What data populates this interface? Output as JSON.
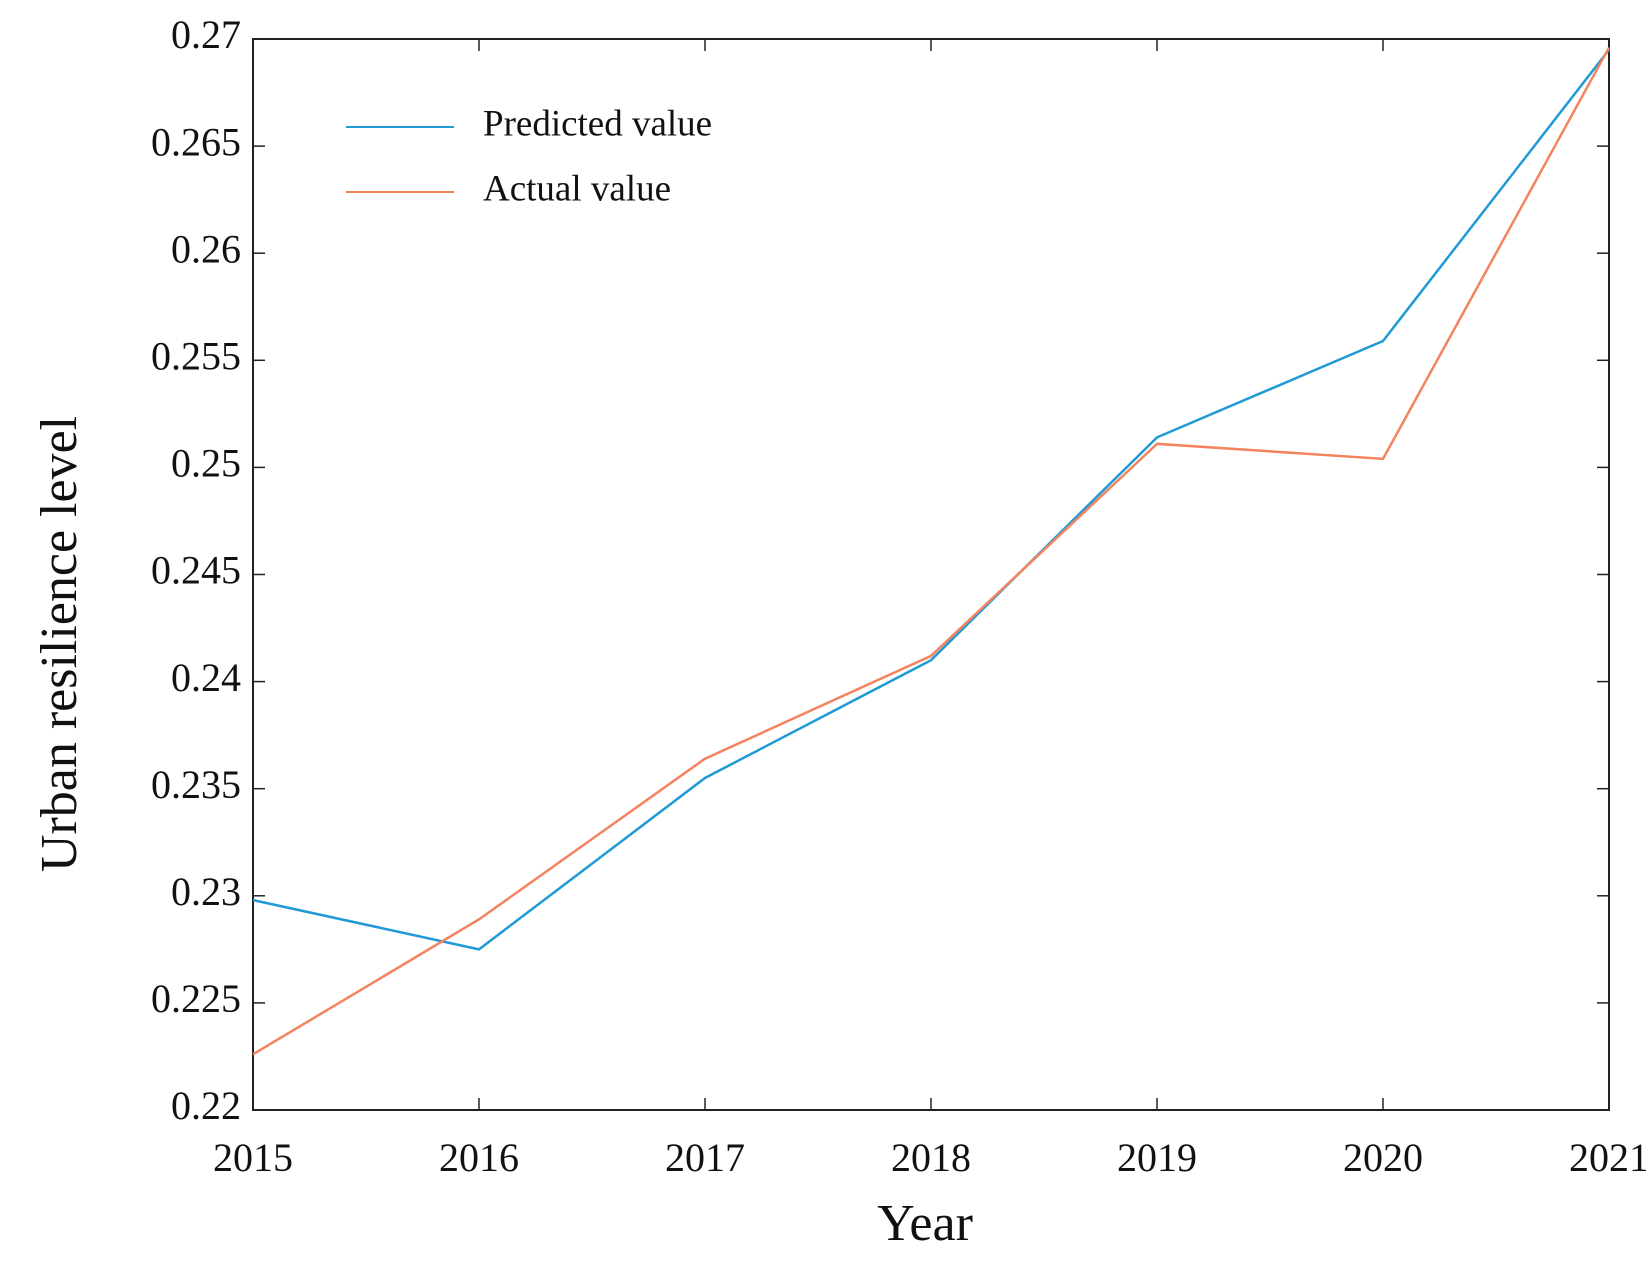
{
  "chart_data": {
    "type": "line",
    "x_label": "Year",
    "y_label": "Urban resilience level",
    "x": [
      2015,
      2016,
      2017,
      2018,
      2019,
      2020,
      2021
    ],
    "series": [
      {
        "name": "Predicted value",
        "color": "#1f9ad6",
        "values": [
          0.2298,
          0.2275,
          0.2355,
          0.241,
          0.2514,
          0.2559,
          0.2695
        ]
      },
      {
        "name": "Actual value",
        "color": "#f4835f",
        "values": [
          0.2226,
          0.2289,
          0.2364,
          0.2412,
          0.2511,
          0.2504,
          0.2696
        ]
      }
    ],
    "xlim": [
      2015,
      2021
    ],
    "xticks": [
      2015,
      2016,
      2017,
      2018,
      2019,
      2020,
      2021
    ],
    "ylim": [
      0.22,
      0.27
    ],
    "yticks": [
      0.22,
      0.225,
      0.23,
      0.235,
      0.24,
      0.245,
      0.25,
      0.255,
      0.26,
      0.265,
      0.27
    ],
    "grid": false,
    "legend": "upper left"
  }
}
